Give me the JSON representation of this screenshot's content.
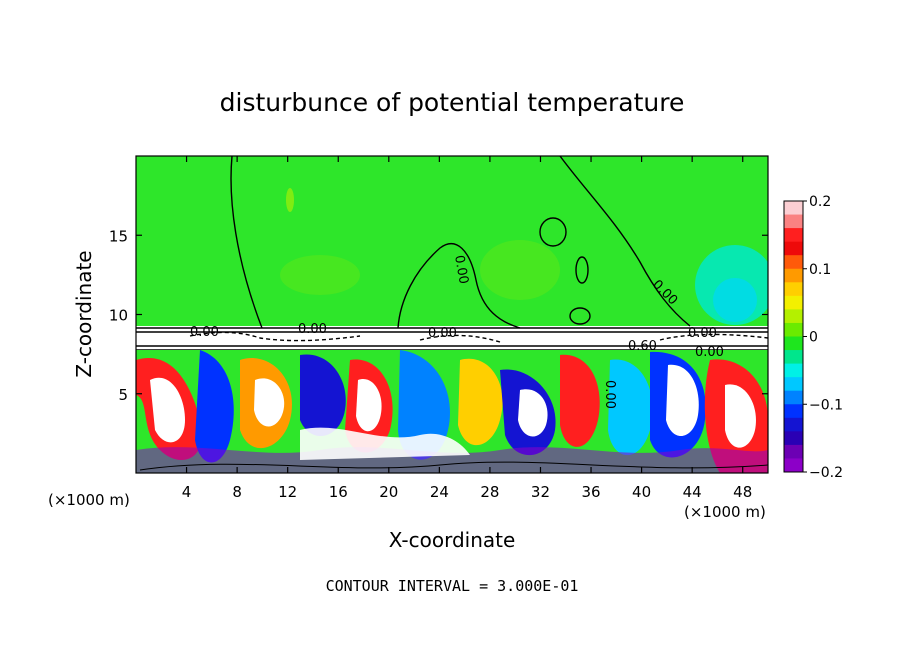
{
  "chart_data": {
    "type": "heatmap",
    "title": "disturbunce of potential temperature",
    "xlabel": "X-coordinate",
    "ylabel": "Z-coordinate",
    "x_unit": "(×1000 m)",
    "x_unit_right": "(×1000 m)",
    "xlim": [
      0,
      50
    ],
    "ylim": [
      0,
      20
    ],
    "x_ticks": [
      4,
      8,
      12,
      16,
      20,
      24,
      28,
      32,
      36,
      40,
      44,
      48
    ],
    "y_ticks": [
      5,
      10,
      15
    ],
    "colorbar": {
      "range": [
        -0.2,
        0.2
      ],
      "tick_labels": [
        "0.2",
        "0.1",
        "0",
        "−0.1",
        "−0.2"
      ],
      "colors": [
        "#fccfd3",
        "#fa8282",
        "#ff1f1f",
        "#ee0a0a",
        "#ff5a0a",
        "#ff9a00",
        "#ffcf00",
        "#f3f000",
        "#b4f000",
        "#6aeb00",
        "#1ee61e",
        "#00e68c",
        "#00f0e6",
        "#00c8ff",
        "#0082ff",
        "#0032ff",
        "#1414d2",
        "#2a00b4",
        "#6c00b4",
        "#8c00c8"
      ]
    },
    "contour_labels": [
      "0.00",
      "0.00",
      "0.00",
      "0.00",
      "0.00",
      "0.00",
      "0.60",
      "0.00",
      "0.00"
    ],
    "footer": "CONTOUR INTERVAL = 3.000E-01"
  }
}
